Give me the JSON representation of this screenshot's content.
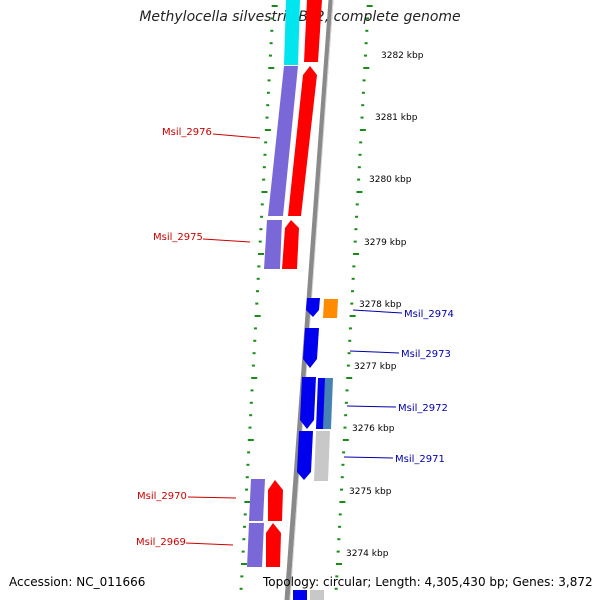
{
  "title": "Methylocella silvestris BL2, complete genome",
  "footer": {
    "accession": "Accession: NC_011666",
    "stats": "Topology: circular; Length: 4,305,430 bp; Genes: 3,872"
  },
  "colors": {
    "forward_cds": "#ff0000",
    "reverse_cds": "#0000ee",
    "forward_feature": "#7b68d8",
    "reverse_feature": "#c8c8c8",
    "orange_feature": "#ff8c00",
    "cyan_feature": "#00e5ee",
    "steelblue_feature": "#4682b4",
    "backbone": "#808080",
    "tick": "#1a8a1a",
    "label_forward": "#cc0000",
    "label_reverse": "#0000aa"
  },
  "ticks": [
    {
      "label": "3282 kbp"
    },
    {
      "label": "3281 kbp"
    },
    {
      "label": "3280 kbp"
    },
    {
      "label": "3279 kbp"
    },
    {
      "label": "3278 kbp"
    },
    {
      "label": "3277 kbp"
    },
    {
      "label": "3276 kbp"
    },
    {
      "label": "3275 kbp"
    },
    {
      "label": "3274 kbp"
    }
  ],
  "genes_forward": [
    {
      "label": "Msil_2976"
    },
    {
      "label": "Msil_2975"
    },
    {
      "label": "Msil_2970"
    },
    {
      "label": "Msil_2969"
    }
  ],
  "genes_reverse": [
    {
      "label": "Msil_2974"
    },
    {
      "label": "Msil_2973"
    },
    {
      "label": "Msil_2972"
    },
    {
      "label": "Msil_2971"
    }
  ]
}
